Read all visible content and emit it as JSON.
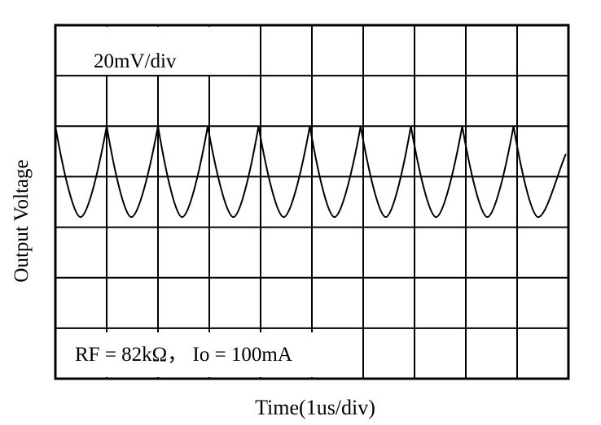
{
  "chart_data": {
    "type": "line",
    "xlabel": "Time(1us/div)",
    "ylabel": "Output Voltage",
    "scale_label": "20mV/div",
    "condition_label": "RF = 82kΩ， Io = 100mA",
    "grid": true,
    "x_divisions": 10,
    "y_divisions": 7,
    "xlim": [
      0,
      10
    ],
    "ylim": [
      0,
      7
    ],
    "series": [
      {
        "peaks_x": [
          0.0,
          1.0,
          2.0,
          2.97,
          3.96,
          4.96,
          5.95,
          6.93,
          7.93,
          8.93
        ],
        "valleys_x": [
          0.49,
          1.48,
          2.47,
          3.47,
          4.45,
          5.44,
          6.44,
          7.42,
          8.42,
          9.41
        ],
        "peak_y": 5.0,
        "valley_y": 3.2,
        "end_x": 9.95,
        "end_y": 4.45
      }
    ]
  }
}
